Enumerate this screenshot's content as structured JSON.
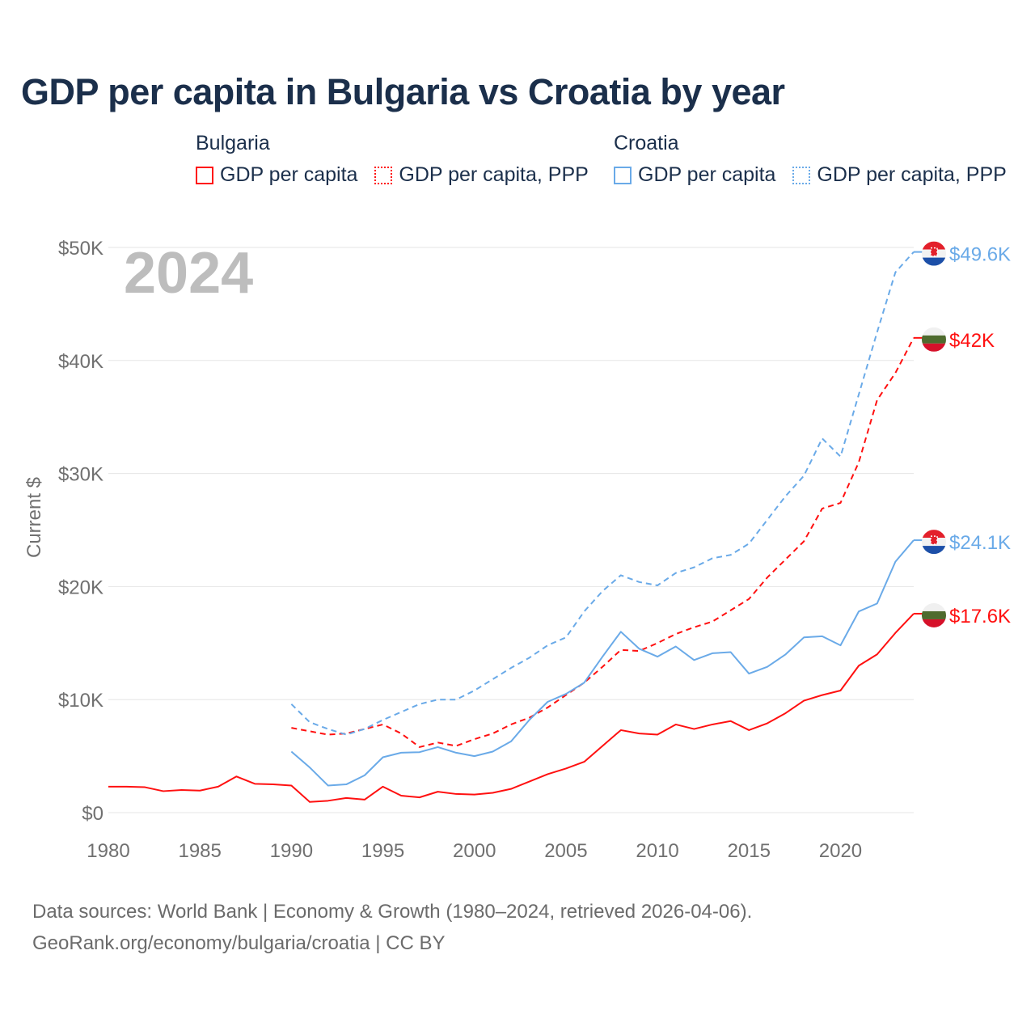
{
  "title": "GDP per capita in Bulgaria vs Croatia by year",
  "legend": {
    "groups": [
      {
        "name": "Bulgaria",
        "color": "#ff1010",
        "items": [
          "GDP per capita",
          "GDP per capita, PPP"
        ]
      },
      {
        "name": "Croatia",
        "color": "#6aaae8",
        "items": [
          "GDP per capita",
          "GDP per capita, PPP"
        ]
      }
    ]
  },
  "footer": {
    "line1": "Data sources: World Bank | Economy & Growth (1980–2024, retrieved 2026-04-06).",
    "line2": "GeoRank.org/economy/bulgaria/croatia | CC BY"
  },
  "chart_data": {
    "type": "line",
    "title": "GDP per capita in Bulgaria vs Croatia by year",
    "year_watermark": "2024",
    "xlabel": "",
    "ylabel": "Current $",
    "xlim": [
      1980,
      2024
    ],
    "ylim": [
      0,
      50000
    ],
    "x_ticks": [
      1980,
      1985,
      1990,
      1995,
      2000,
      2005,
      2010,
      2015,
      2020
    ],
    "y_ticks": [
      0,
      10000,
      20000,
      30000,
      40000,
      50000
    ],
    "y_tick_labels": [
      "$0",
      "$10K",
      "$20K",
      "$30K",
      "$40K",
      "$50K"
    ],
    "grid": true,
    "legend_position": "top",
    "series": [
      {
        "name": "Bulgaria GDP per capita",
        "country": "Bulgaria",
        "color": "#ff1010",
        "dash": false,
        "start": 1980,
        "end_label": "$17.6K",
        "values": [
          2300,
          2300,
          2250,
          1900,
          2000,
          1950,
          2300,
          3200,
          2550,
          2500,
          2400,
          950,
          1050,
          1300,
          1150,
          2300,
          1500,
          1350,
          1850,
          1650,
          1600,
          1750,
          2100,
          2750,
          3400,
          3900,
          4500,
          5900,
          7300,
          7000,
          6900,
          7800,
          7400,
          7800,
          8100,
          7300,
          7900,
          8800,
          9900,
          10400,
          10800,
          13000,
          14000,
          15900,
          17600
        ]
      },
      {
        "name": "Bulgaria GDP per capita, PPP",
        "country": "Bulgaria",
        "color": "#ff1010",
        "dash": true,
        "start": 1990,
        "end_label": "$42K",
        "values": [
          7500,
          7200,
          6900,
          7000,
          7400,
          7800,
          7000,
          5800,
          6200,
          5900,
          6500,
          7000,
          7800,
          8400,
          9300,
          10400,
          11500,
          12900,
          14400,
          14300,
          15000,
          15800,
          16400,
          16900,
          17900,
          18900,
          20800,
          22400,
          24000,
          26900,
          27400,
          31000,
          36500,
          38900,
          42000
        ]
      },
      {
        "name": "Croatia GDP per capita",
        "country": "Croatia",
        "color": "#6aaae8",
        "dash": false,
        "start": 1990,
        "end_label": "$24.1K",
        "values": [
          5400,
          4000,
          2400,
          2500,
          3300,
          4900,
          5300,
          5350,
          5800,
          5300,
          5000,
          5400,
          6300,
          8200,
          9800,
          10500,
          11500,
          13800,
          16000,
          14500,
          13800,
          14700,
          13500,
          14100,
          14200,
          12300,
          12900,
          14000,
          15500,
          15600,
          14800,
          17800,
          18500,
          22200,
          24100
        ]
      },
      {
        "name": "Croatia GDP per capita, PPP",
        "country": "Croatia",
        "color": "#6aaae8",
        "dash": true,
        "start": 1990,
        "end_label": "$49.6K",
        "values": [
          9600,
          8000,
          7400,
          6900,
          7400,
          8200,
          8900,
          9600,
          10000,
          10000,
          10800,
          11800,
          12800,
          13700,
          14800,
          15500,
          17800,
          19600,
          21000,
          20400,
          20100,
          21200,
          21700,
          22500,
          22800,
          23800,
          25900,
          28000,
          29800,
          33100,
          31500,
          37000,
          42500,
          47800,
          49600
        ]
      }
    ]
  }
}
